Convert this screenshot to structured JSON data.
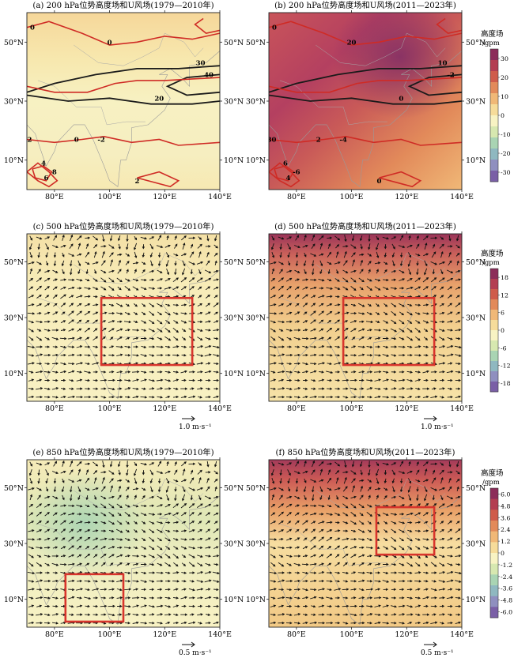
{
  "figure": {
    "lon_ticks": [
      "80°E",
      "100°E",
      "120°E",
      "140°E"
    ],
    "lat_ticks": [
      "10°N",
      "30°N",
      "50°N"
    ],
    "map_extent": {
      "lon": [
        70,
        140
      ],
      "lat": [
        0,
        60
      ]
    },
    "colorbar_title": "高度场",
    "colorbar_unit": "/gpm"
  },
  "chart_data": [
    {
      "id": "a",
      "type": "heatmap",
      "title": "(a) 200 hPa位势高度场和U风场(1979—2010年)",
      "xlabel": "",
      "ylabel": "",
      "field": "200 hPa geopotential height anomaly (shaded) and zonal wind U (contours)",
      "shading": "near zero anomaly (pale yellow), weak positive over north and south",
      "contour_labels": [
        "0",
        "0",
        "30",
        "40",
        "20",
        "2",
        "-2",
        "8",
        "6",
        "4",
        "0",
        "2"
      ]
    },
    {
      "id": "b",
      "type": "heatmap",
      "title": "(b) 200 hPa位势高度场和U风场(2011—2023年)",
      "xlabel": "",
      "ylabel": "",
      "field": "200 hPa geopotential height anomaly (shaded) and zonal wind U (contours)",
      "shading": "strong positive anomaly, maximum over northeast Asia",
      "contour_labels": [
        "0",
        "20",
        "10",
        "-2",
        "0",
        "30",
        "-4",
        "-6",
        "4",
        "6",
        "2",
        "0"
      ]
    },
    {
      "id": "c",
      "type": "heatmap",
      "title": "(c) 500 hPa位势高度场和U风场(1979—2010年)",
      "xlabel": "",
      "ylabel": "",
      "vector_ref": "1.0 m·s⁻¹",
      "box": {
        "lon": [
          97,
          130
        ],
        "lat": [
          13,
          37
        ]
      }
    },
    {
      "id": "d",
      "type": "heatmap",
      "title": "(d) 500 hPa位势高度场和U风场(2011—2023年)",
      "xlabel": "",
      "ylabel": "",
      "vector_ref": "1.0 m·s⁻¹",
      "box": {
        "lon": [
          97,
          130
        ],
        "lat": [
          13,
          37
        ]
      }
    },
    {
      "id": "e",
      "type": "heatmap",
      "title": "(e) 850 hPa位势高度场和U风场(1979—2010年)",
      "xlabel": "",
      "ylabel": "",
      "vector_ref": "0.5 m·s⁻¹",
      "box": {
        "lon": [
          84,
          105
        ],
        "lat": [
          2,
          19
        ]
      }
    },
    {
      "id": "f",
      "type": "heatmap",
      "title": "(f) 850 hPa位势高度场和U风场(2011—2023年)",
      "xlabel": "",
      "ylabel": "",
      "vector_ref": "0.5 m·s⁻¹",
      "box": {
        "lon": [
          109,
          130
        ],
        "lat": [
          26,
          43
        ]
      }
    }
  ],
  "colorbars": [
    {
      "row": 1,
      "ticks": [
        "30",
        "20",
        "10",
        "0",
        "-10",
        "-20",
        "-30"
      ],
      "colors": [
        "#8c2d5a",
        "#b33e52",
        "#cf5c4b",
        "#e28a5a",
        "#f0b877",
        "#f6dc9a",
        "#f8f3c3",
        "#d7e8b0",
        "#a9d4b3",
        "#8fb8c0",
        "#8f8fbf",
        "#7a5fa6"
      ]
    },
    {
      "row": 2,
      "ticks": [
        "18",
        "12",
        "6",
        "0",
        "-6",
        "-12",
        "-18"
      ],
      "colors": [
        "#8c2d5a",
        "#b33e52",
        "#cf5c4b",
        "#e28a5a",
        "#f0b877",
        "#f6dc9a",
        "#f8f3c3",
        "#d7e8b0",
        "#a9d4b3",
        "#8fb8c0",
        "#8f8fbf",
        "#7a5fa6"
      ]
    },
    {
      "row": 3,
      "ticks": [
        "6.0",
        "4.8",
        "3.6",
        "2.4",
        "1.2",
        "0",
        "-1.2",
        "-2.4",
        "-3.6",
        "-4.8",
        "-6.0"
      ],
      "colors": [
        "#8c2d5a",
        "#b33e52",
        "#cf5c4b",
        "#e28a5a",
        "#f0b877",
        "#f6dc9a",
        "#f8f3c3",
        "#d7e8b0",
        "#a9d4b3",
        "#8fb8c0",
        "#8f8fbf",
        "#7a5fa6"
      ]
    }
  ]
}
